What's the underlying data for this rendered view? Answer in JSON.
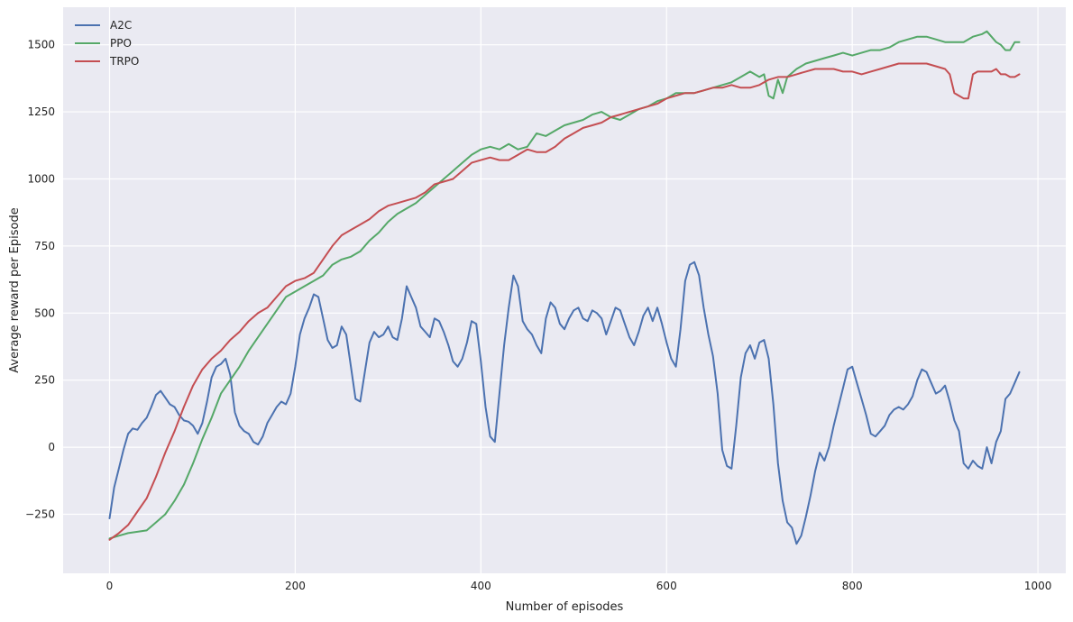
{
  "chart_data": {
    "type": "line",
    "title": "",
    "xlabel": "Number of episodes",
    "ylabel": "Average reward per Episode",
    "xlim": [
      -50,
      1030
    ],
    "ylim": [
      -470,
      1640
    ],
    "xticks": [
      0,
      200,
      400,
      600,
      800,
      1000
    ],
    "xtick_labels": [
      "0",
      "200",
      "400",
      "600",
      "800",
      "1000"
    ],
    "yticks": [
      -250,
      0,
      250,
      500,
      750,
      1000,
      1250,
      1500
    ],
    "ytick_labels": [
      "−250",
      "0",
      "250",
      "500",
      "750",
      "1000",
      "1250",
      "1500"
    ],
    "grid": true,
    "legend_position": "top-left",
    "series": [
      {
        "name": "A2C",
        "color": "#4c72b0",
        "x": [
          0,
          5,
          10,
          15,
          20,
          25,
          30,
          35,
          40,
          45,
          50,
          55,
          60,
          65,
          70,
          75,
          80,
          85,
          90,
          95,
          100,
          105,
          110,
          115,
          120,
          125,
          130,
          135,
          140,
          145,
          150,
          155,
          160,
          165,
          170,
          175,
          180,
          185,
          190,
          195,
          200,
          205,
          210,
          215,
          220,
          225,
          230,
          235,
          240,
          245,
          250,
          255,
          260,
          265,
          270,
          275,
          280,
          285,
          290,
          295,
          300,
          305,
          310,
          315,
          320,
          325,
          330,
          335,
          340,
          345,
          350,
          355,
          360,
          365,
          370,
          375,
          380,
          385,
          390,
          395,
          400,
          405,
          410,
          415,
          420,
          425,
          430,
          435,
          440,
          445,
          450,
          455,
          460,
          465,
          470,
          475,
          480,
          485,
          490,
          495,
          500,
          505,
          510,
          515,
          520,
          525,
          530,
          535,
          540,
          545,
          550,
          555,
          560,
          565,
          570,
          575,
          580,
          585,
          590,
          595,
          600,
          605,
          610,
          615,
          620,
          625,
          630,
          635,
          640,
          645,
          650,
          655,
          660,
          665,
          670,
          675,
          680,
          685,
          690,
          695,
          700,
          705,
          710,
          715,
          720,
          725,
          730,
          735,
          740,
          745,
          750,
          755,
          760,
          765,
          770,
          775,
          780,
          785,
          790,
          795,
          800,
          805,
          810,
          815,
          820,
          825,
          830,
          835,
          840,
          845,
          850,
          855,
          860,
          865,
          870,
          875,
          880,
          885,
          890,
          895,
          900,
          905,
          910,
          915,
          920,
          925,
          930,
          935,
          940,
          945,
          950,
          955,
          960,
          965,
          970,
          975,
          980
        ],
        "y": [
          -265,
          -150,
          -80,
          -10,
          50,
          70,
          65,
          90,
          110,
          150,
          195,
          210,
          185,
          160,
          150,
          120,
          100,
          95,
          80,
          50,
          90,
          170,
          260,
          300,
          310,
          330,
          270,
          130,
          80,
          60,
          50,
          20,
          10,
          40,
          90,
          120,
          150,
          170,
          160,
          200,
          300,
          420,
          480,
          520,
          570,
          560,
          480,
          400,
          370,
          380,
          450,
          420,
          300,
          180,
          170,
          280,
          390,
          430,
          410,
          420,
          450,
          410,
          400,
          480,
          600,
          560,
          520,
          450,
          430,
          410,
          480,
          470,
          430,
          380,
          320,
          300,
          330,
          390,
          470,
          460,
          320,
          150,
          40,
          20,
          200,
          380,
          520,
          640,
          600,
          470,
          440,
          420,
          380,
          350,
          480,
          540,
          520,
          460,
          440,
          480,
          510,
          520,
          480,
          470,
          510,
          500,
          480,
          420,
          470,
          520,
          510,
          460,
          410,
          380,
          430,
          490,
          520,
          470,
          520,
          460,
          390,
          330,
          300,
          440,
          620,
          680,
          690,
          640,
          520,
          420,
          340,
          200,
          -10,
          -70,
          -80,
          80,
          260,
          350,
          380,
          330,
          390,
          400,
          330,
          160,
          -60,
          -200,
          -280,
          -300,
          -360,
          -330,
          -260,
          -180,
          -90,
          -20,
          -50,
          0,
          80,
          150,
          220,
          290,
          300,
          240,
          180,
          120,
          50,
          40,
          60,
          80,
          120,
          140,
          150,
          140,
          160,
          190,
          250,
          290,
          280,
          240,
          200,
          210,
          230,
          170,
          100,
          60,
          -60,
          -80,
          -50,
          -70,
          -80,
          0,
          -60,
          20,
          60,
          180,
          200,
          240,
          280
        ]
      },
      {
        "name": "PPO",
        "color": "#55a868",
        "x": [
          0,
          10,
          20,
          30,
          40,
          50,
          60,
          70,
          80,
          90,
          100,
          110,
          120,
          130,
          140,
          150,
          160,
          170,
          180,
          190,
          200,
          210,
          220,
          230,
          240,
          250,
          260,
          270,
          280,
          290,
          300,
          310,
          320,
          330,
          340,
          350,
          360,
          370,
          380,
          390,
          400,
          410,
          420,
          430,
          440,
          450,
          460,
          470,
          480,
          490,
          500,
          510,
          520,
          530,
          540,
          550,
          560,
          570,
          580,
          590,
          600,
          610,
          620,
          630,
          640,
          650,
          660,
          670,
          680,
          690,
          700,
          705,
          710,
          715,
          720,
          725,
          730,
          740,
          750,
          760,
          770,
          780,
          790,
          800,
          810,
          820,
          830,
          840,
          850,
          860,
          870,
          880,
          890,
          900,
          910,
          920,
          930,
          940,
          945,
          950,
          955,
          960,
          965,
          970,
          975,
          980
        ],
        "y": [
          -340,
          -330,
          -320,
          -315,
          -310,
          -280,
          -250,
          -200,
          -140,
          -60,
          30,
          110,
          200,
          250,
          300,
          360,
          410,
          460,
          510,
          560,
          580,
          600,
          620,
          640,
          680,
          700,
          710,
          730,
          770,
          800,
          840,
          870,
          890,
          910,
          940,
          970,
          1000,
          1030,
          1060,
          1090,
          1110,
          1120,
          1110,
          1130,
          1110,
          1120,
          1170,
          1160,
          1180,
          1200,
          1210,
          1220,
          1240,
          1250,
          1230,
          1220,
          1240,
          1260,
          1270,
          1290,
          1300,
          1320,
          1320,
          1320,
          1330,
          1340,
          1350,
          1360,
          1380,
          1400,
          1380,
          1390,
          1310,
          1300,
          1370,
          1320,
          1380,
          1410,
          1430,
          1440,
          1450,
          1460,
          1470,
          1460,
          1470,
          1480,
          1480,
          1490,
          1510,
          1520,
          1530,
          1530,
          1520,
          1510,
          1510,
          1510,
          1530,
          1540,
          1550,
          1530,
          1510,
          1500,
          1480,
          1480,
          1510,
          1510
        ]
      },
      {
        "name": "TRPO",
        "color": "#c44e52",
        "x": [
          0,
          10,
          20,
          30,
          40,
          50,
          60,
          70,
          80,
          90,
          100,
          110,
          120,
          130,
          140,
          150,
          160,
          170,
          180,
          190,
          200,
          210,
          220,
          230,
          240,
          250,
          260,
          270,
          280,
          290,
          300,
          310,
          320,
          330,
          340,
          350,
          360,
          370,
          380,
          390,
          400,
          410,
          420,
          430,
          440,
          450,
          460,
          470,
          480,
          490,
          500,
          510,
          520,
          530,
          540,
          550,
          560,
          570,
          580,
          590,
          600,
          610,
          620,
          630,
          640,
          650,
          660,
          670,
          680,
          690,
          700,
          710,
          720,
          730,
          740,
          750,
          760,
          770,
          780,
          790,
          800,
          810,
          820,
          830,
          840,
          850,
          860,
          870,
          880,
          890,
          900,
          905,
          910,
          915,
          920,
          925,
          930,
          935,
          940,
          945,
          950,
          955,
          960,
          965,
          970,
          975,
          980
        ],
        "y": [
          -345,
          -320,
          -290,
          -240,
          -190,
          -110,
          -20,
          60,
          150,
          230,
          290,
          330,
          360,
          400,
          430,
          470,
          500,
          520,
          560,
          600,
          620,
          630,
          650,
          700,
          750,
          790,
          810,
          830,
          850,
          880,
          900,
          910,
          920,
          930,
          950,
          980,
          990,
          1000,
          1030,
          1060,
          1070,
          1080,
          1070,
          1070,
          1090,
          1110,
          1100,
          1100,
          1120,
          1150,
          1170,
          1190,
          1200,
          1210,
          1230,
          1240,
          1250,
          1260,
          1270,
          1280,
          1300,
          1310,
          1320,
          1320,
          1330,
          1340,
          1340,
          1350,
          1340,
          1340,
          1350,
          1370,
          1380,
          1380,
          1390,
          1400,
          1410,
          1410,
          1410,
          1400,
          1400,
          1390,
          1400,
          1410,
          1420,
          1430,
          1430,
          1430,
          1430,
          1420,
          1410,
          1390,
          1320,
          1310,
          1300,
          1300,
          1390,
          1400,
          1400,
          1400,
          1400,
          1410,
          1390,
          1390,
          1380,
          1380,
          1390
        ]
      }
    ]
  }
}
